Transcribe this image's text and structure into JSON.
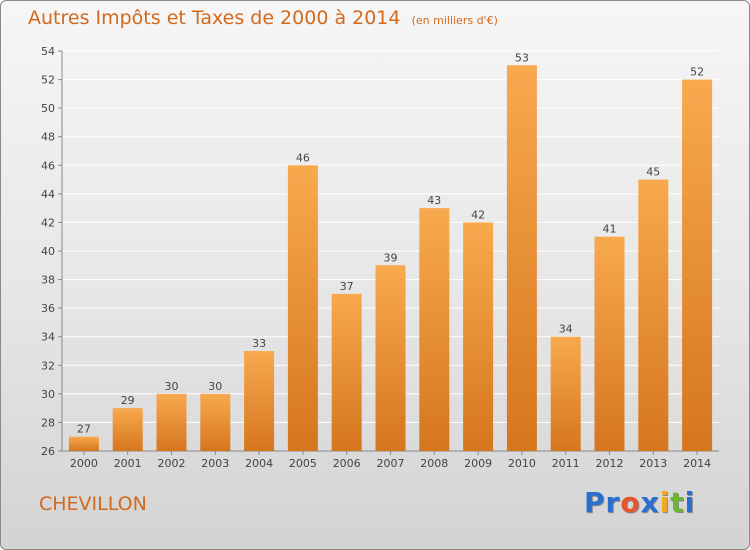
{
  "title": "Autres Impôts et Taxes de 2000 à 2014",
  "subtitle": "(en milliers d'€)",
  "commune": "CHEVILLON",
  "logo": {
    "letters": [
      {
        "ch": "P",
        "color": "#2a6fd0"
      },
      {
        "ch": "r",
        "color": "#2a6fd0"
      },
      {
        "ch": "o",
        "color": "#e5552a"
      },
      {
        "ch": "x",
        "color": "#2a6fd0"
      },
      {
        "ch": "i",
        "color": "#f2a91e"
      },
      {
        "ch": "t",
        "color": "#6ab82e"
      },
      {
        "ch": "i",
        "color": "#2a6fd0"
      }
    ]
  },
  "colors": {
    "bar_top": "#f8a94e",
    "bar_bottom": "#d5761f",
    "grid": "#ffffff",
    "text": "#d2691e"
  },
  "chart_data": {
    "type": "bar",
    "title": "Autres Impôts et Taxes de 2000 à 2014",
    "xlabel": "",
    "ylabel": "",
    "ylim": [
      26,
      54
    ],
    "yticks": [
      26,
      28,
      30,
      32,
      34,
      36,
      38,
      40,
      42,
      44,
      46,
      48,
      50,
      52,
      54
    ],
    "grid": true,
    "categories": [
      "2000",
      "2001",
      "2002",
      "2003",
      "2004",
      "2005",
      "2006",
      "2007",
      "2008",
      "2009",
      "2010",
      "2011",
      "2012",
      "2013",
      "2014"
    ],
    "values": [
      27,
      29,
      30,
      30,
      33,
      46,
      37,
      39,
      43,
      42,
      53,
      34,
      41,
      45,
      52
    ]
  }
}
